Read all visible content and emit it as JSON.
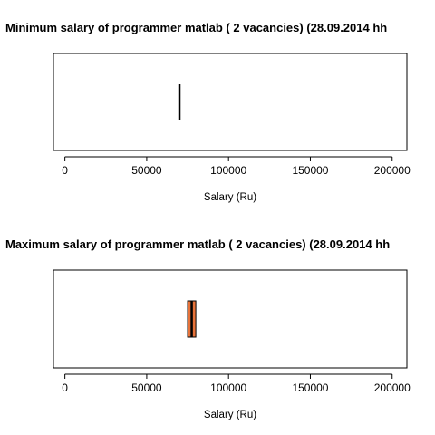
{
  "chart_data": [
    {
      "type": "boxplot",
      "title": "Minimum salary of programmer  matlab ( 2  vacancies)  (28.09.2014 hh",
      "xlabel": "Salary (Ru)",
      "ylabel": "",
      "xlim": [
        -7000,
        209000
      ],
      "ticks": [
        0,
        50000,
        100000,
        150000,
        200000
      ],
      "tick_labels": [
        "0",
        "50000",
        "100000",
        "150000",
        "200000"
      ],
      "box": {
        "min": 70000,
        "q1": 70000,
        "median": 70000,
        "q3": 70000,
        "max": 70000
      },
      "box_fill": "#ffffff",
      "grid": false,
      "legend": "none"
    },
    {
      "type": "boxplot",
      "title": "Maximum salary of programmer  matlab ( 2  vacancies)  (28.09.2014 hh",
      "xlabel": "Salary (Ru)",
      "ylabel": "",
      "xlim": [
        -7000,
        209000
      ],
      "ticks": [
        0,
        50000,
        100000,
        150000,
        200000
      ],
      "tick_labels": [
        "0",
        "50000",
        "100000",
        "150000",
        "200000"
      ],
      "box": {
        "min": 75000,
        "q1": 75000,
        "median": 77500,
        "q3": 80000,
        "max": 80000
      },
      "box_fill": "#e8733a",
      "grid": false,
      "legend": "none"
    }
  ]
}
